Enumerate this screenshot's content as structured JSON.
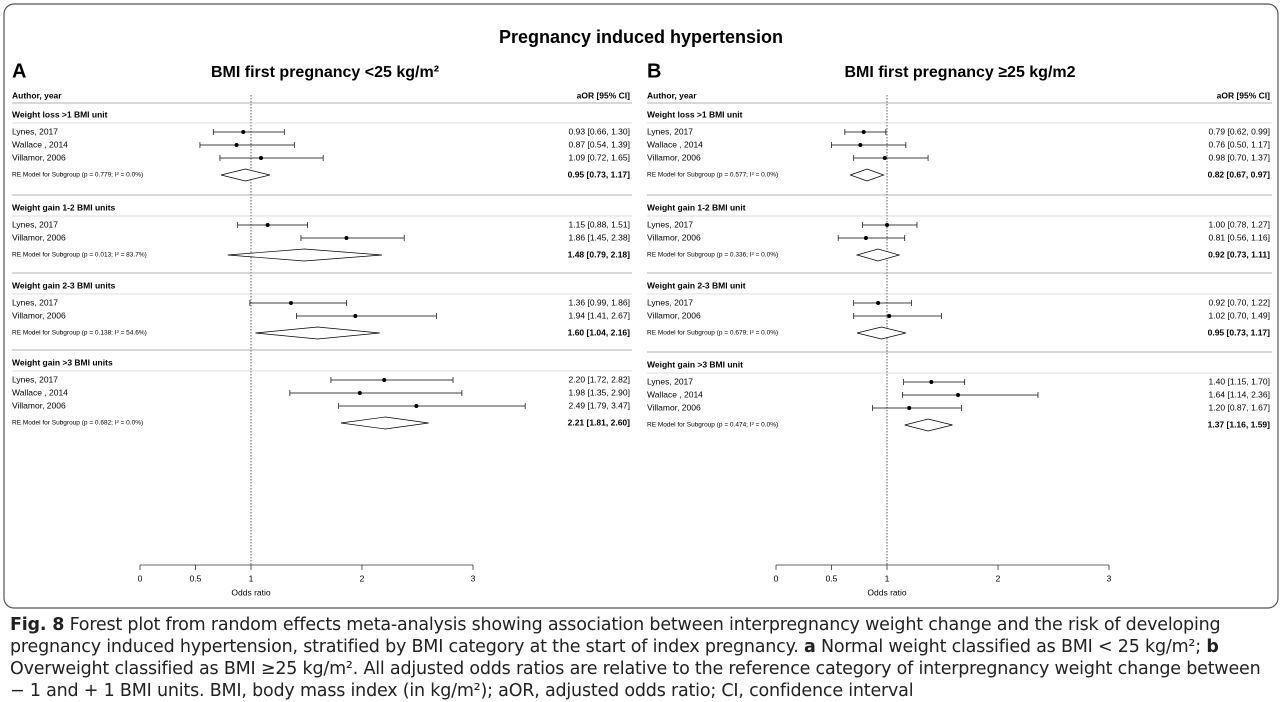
{
  "title": "Pregnancy induced hypertension",
  "chart_data": [
    {
      "type": "forest",
      "panel_label": "A",
      "title": "BMI first pregnancy <25 kg/m²",
      "study_header": "Author, year",
      "estimate_header": "aOR [95% CI]",
      "xlabel": "Odds ratio",
      "xlim": [
        0,
        3
      ],
      "xticks": [
        0,
        0.5,
        1,
        2,
        3
      ],
      "reference_line": 1,
      "color": "#000000",
      "groups": [
        {
          "name": "Weight loss >1 BMI unit",
          "studies": [
            "Lynes, 2017",
            "Wallace , 2014",
            "Villamor, 2006"
          ],
          "values": [
            0.93,
            0.87,
            1.09
          ],
          "lower": [
            0.66,
            0.54,
            0.72
          ],
          "upper": [
            1.3,
            1.39,
            1.65
          ],
          "value_labels": [
            "0.93 [0.66, 1.30]",
            "0.87 [0.54, 1.39]",
            "1.09 [0.72, 1.65]"
          ],
          "model": {
            "label": "RE Model for Subgroup (p = 0.779; I² = 0.0%)",
            "value": 0.95,
            "lower": 0.73,
            "upper": 1.17,
            "value_label": "0.95 [0.73, 1.17]"
          }
        },
        {
          "name": "Weight gain 1-2 BMI units",
          "studies": [
            "Lynes, 2017",
            "Villamor, 2006"
          ],
          "values": [
            1.15,
            1.86
          ],
          "lower": [
            0.88,
            1.45
          ],
          "upper": [
            1.51,
            2.38
          ],
          "value_labels": [
            "1.15 [0.88, 1.51]",
            "1.86 [1.45, 2.38]"
          ],
          "model": {
            "label": "RE Model for Subgroup (p = 0.013; I² = 83.7%)",
            "value": 1.48,
            "lower": 0.79,
            "upper": 2.18,
            "value_label": "1.48 [0.79, 2.18]"
          }
        },
        {
          "name": "Weight gain 2-3 BMI units",
          "studies": [
            "Lynes, 2017",
            "Villamor, 2006"
          ],
          "values": [
            1.36,
            1.94
          ],
          "lower": [
            0.99,
            1.41
          ],
          "upper": [
            1.86,
            2.67
          ],
          "value_labels": [
            "1.36 [0.99, 1.86]",
            "1.94 [1.41, 2.67]"
          ],
          "model": {
            "label": "RE Model for Subgroup (p = 0.138; I² = 54.6%)",
            "value": 1.6,
            "lower": 1.04,
            "upper": 2.16,
            "value_label": "1.60 [1.04, 2.16]"
          }
        },
        {
          "name": "Weight gain >3 BMI units",
          "studies": [
            "Lynes, 2017",
            "Wallace , 2014",
            "Villamor, 2006"
          ],
          "values": [
            2.2,
            1.98,
            2.49
          ],
          "lower": [
            1.72,
            1.35,
            1.79
          ],
          "upper": [
            2.82,
            2.9,
            3.47
          ],
          "value_labels": [
            "2.20 [1.72, 2.82]",
            "1.98 [1.35, 2.90]",
            "2.49 [1.79, 3.47]"
          ],
          "model": {
            "label": "RE Model for Subgroup (p = 0.682; I² = 0.0%)",
            "value": 2.21,
            "lower": 1.81,
            "upper": 2.6,
            "value_label": "2.21 [1.81, 2.60]"
          }
        }
      ]
    },
    {
      "type": "forest",
      "panel_label": "B",
      "title": "BMI first pregnancy ≥25 kg/m2",
      "study_header": "Author, year",
      "estimate_header": "aOR [95% CI]",
      "xlabel": "Odds ratio",
      "xlim": [
        0,
        3
      ],
      "xticks": [
        0,
        0.5,
        1,
        2,
        3
      ],
      "reference_line": 1,
      "color": "#000000",
      "groups": [
        {
          "name": "Weight loss >1 BMI unit",
          "studies": [
            "Lynes, 2017",
            "Wallace , 2014",
            "Villamor, 2006"
          ],
          "values": [
            0.79,
            0.76,
            0.98
          ],
          "lower": [
            0.62,
            0.5,
            0.7
          ],
          "upper": [
            0.99,
            1.17,
            1.37
          ],
          "value_labels": [
            "0.79 [0.62, 0.99]",
            "0.76 [0.50, 1.17]",
            "0.98 [0.70, 1.37]"
          ],
          "model": {
            "label": "RE Model for Subgroup (p = 0.577; I² = 0.0%)",
            "value": 0.82,
            "lower": 0.67,
            "upper": 0.97,
            "value_label": "0.82 [0.67, 0.97]"
          }
        },
        {
          "name": "Weight gain 1-2 BMI unit",
          "studies": [
            "Lynes, 2017",
            "Villamor, 2006"
          ],
          "values": [
            1.0,
            0.81
          ],
          "lower": [
            0.78,
            0.56
          ],
          "upper": [
            1.27,
            1.16
          ],
          "value_labels": [
            "1.00 [0.78, 1.27]",
            "0.81 [0.56, 1.16]"
          ],
          "model": {
            "label": "RE Model for Subgroup (p = 0.336; I² = 0.0%)",
            "value": 0.92,
            "lower": 0.73,
            "upper": 1.11,
            "value_label": "0.92 [0.73, 1.11]"
          }
        },
        {
          "name": "Weight gain 2-3 BMI unit",
          "studies": [
            "Lynes, 2017",
            "Villamor, 2006"
          ],
          "values": [
            0.92,
            1.02
          ],
          "lower": [
            0.7,
            0.7
          ],
          "upper": [
            1.22,
            1.49
          ],
          "value_labels": [
            "0.92 [0.70, 1.22]",
            "1.02 [0.70, 1.49]"
          ],
          "model": {
            "label": "RE Model for Subgroup (p = 0.679; I² = 0.0%)",
            "value": 0.95,
            "lower": 0.73,
            "upper": 1.17,
            "value_label": "0.95 [0.73, 1.17]"
          }
        },
        {
          "name": "Weight gain >3 BMI unit",
          "studies": [
            "Lynes, 2017",
            "Wallace , 2014",
            "Villamor, 2006"
          ],
          "values": [
            1.4,
            1.64,
            1.2
          ],
          "lower": [
            1.15,
            1.14,
            0.87
          ],
          "upper": [
            1.7,
            2.36,
            1.67
          ],
          "value_labels": [
            "1.40 [1.15, 1.70]",
            "1.64 [1.14, 2.36]",
            "1.20 [0.87, 1.67]"
          ],
          "model": {
            "label": "RE Model for Subgroup (p = 0.474; I² = 0.0%)",
            "value": 1.37,
            "lower": 1.16,
            "upper": 1.59,
            "value_label": "1.37 [1.16, 1.59]"
          }
        }
      ]
    }
  ],
  "caption": [
    {
      "text": "Fig. 8",
      "bold": true
    },
    {
      "text": " Forest plot from random effects meta-analysis showing association between interpregnancy weight change and the risk of developing pregnancy induced hypertension, stratified by BMI category at the start of index pregnancy. ",
      "bold": false
    },
    {
      "text": "a",
      "bold": true
    },
    {
      "text": " Normal weight classified as BMI < 25 kg/m²; ",
      "bold": false
    },
    {
      "text": "b",
      "bold": true
    },
    {
      "text": " Overweight classified as BMI ≥25 kg/m². All adjusted odds ratios are relative to the reference category of interpregnancy weight change between − 1 and + 1 BMI units. BMI, body mass index (in kg/m²); aOR, adjusted odds ratio; CI, confidence interval",
      "bold": false
    }
  ]
}
